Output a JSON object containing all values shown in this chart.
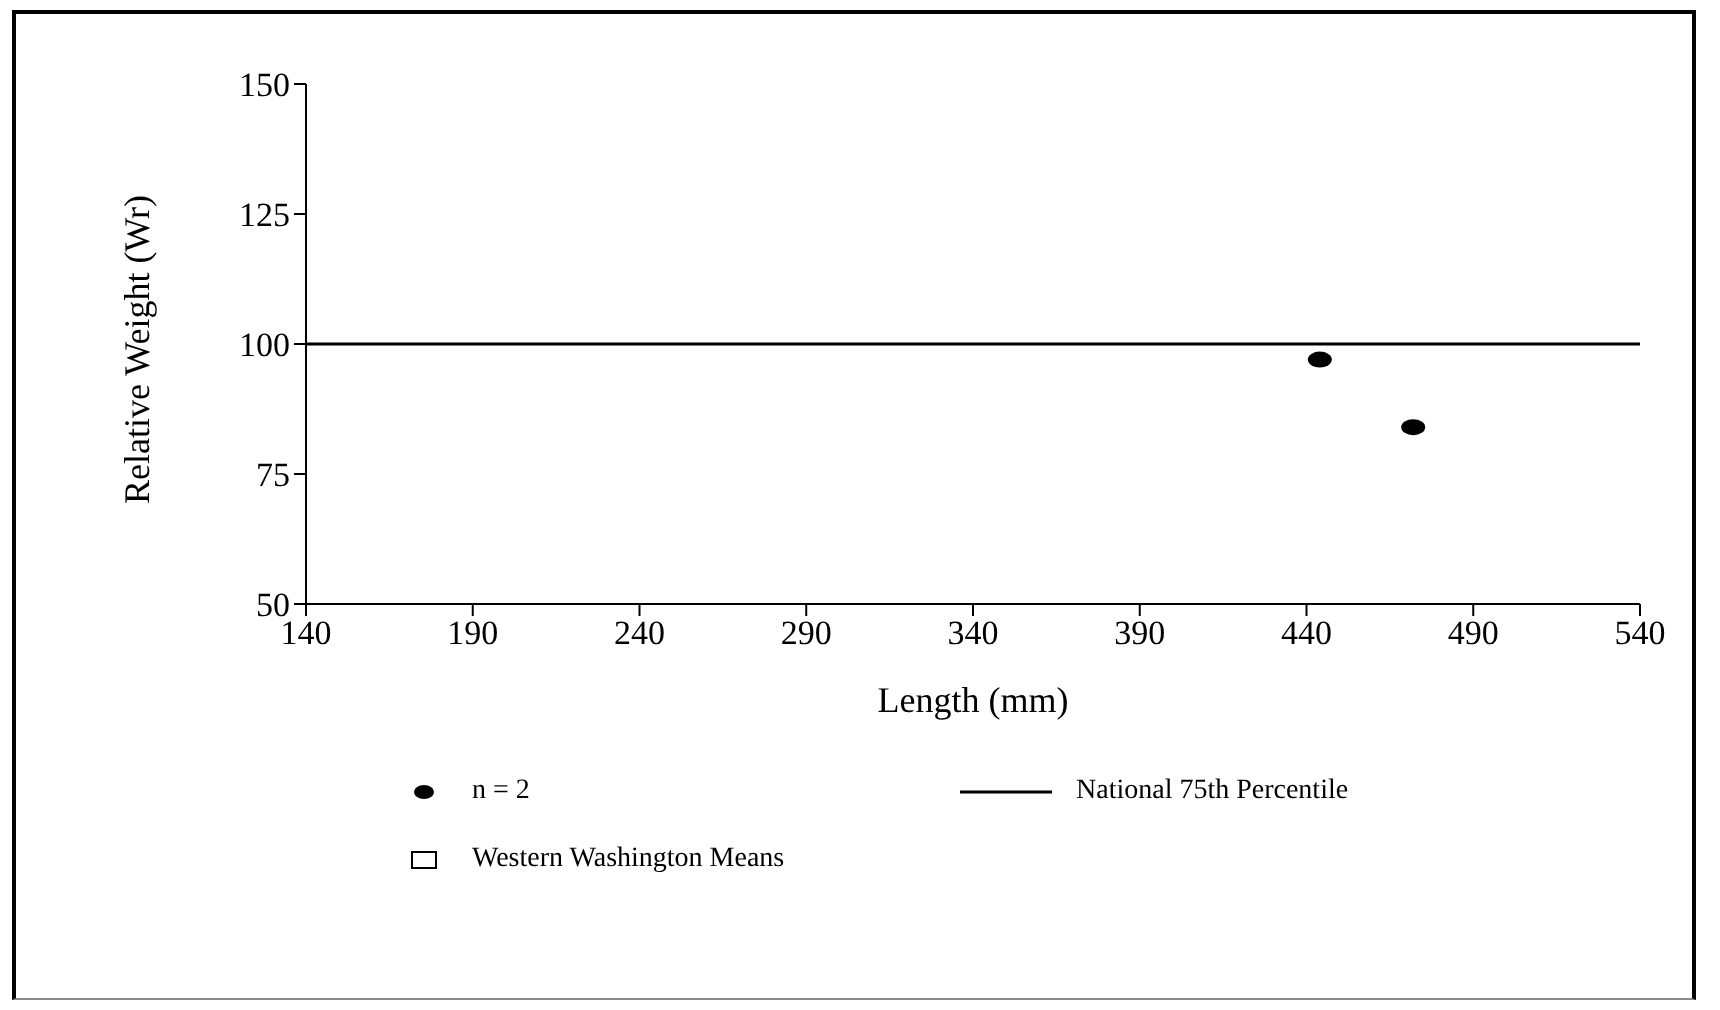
{
  "chart_data": {
    "type": "scatter",
    "xlabel": "Length (mm)",
    "ylabel": "Relative Weight (Wr)",
    "xlim": [
      140,
      540
    ],
    "xticks": [
      140,
      190,
      240,
      290,
      340,
      390,
      440,
      490,
      540
    ],
    "ylim": [
      50,
      150
    ],
    "yticks": [
      50,
      75,
      100,
      125,
      150
    ],
    "grid": false,
    "legend": "bottom",
    "series": [
      {
        "name": "n = 2",
        "marker": "circle",
        "color": "#000000",
        "x": [
          444,
          472
        ],
        "values": [
          97,
          84
        ]
      },
      {
        "name": "National 75th Percentile",
        "type": "line",
        "marker": "none",
        "color": "#000000",
        "x": [
          140,
          540
        ],
        "values": [
          100,
          100
        ]
      },
      {
        "name": "Western Washington Means",
        "type": "scatter",
        "marker": "square",
        "color": "#000000"
      }
    ]
  }
}
